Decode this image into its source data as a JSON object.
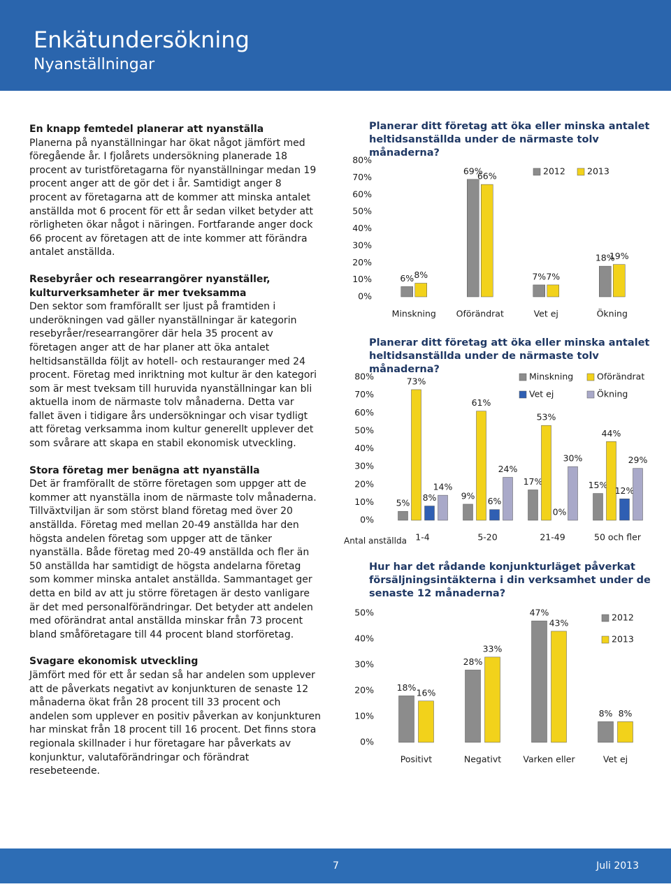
{
  "header": {
    "title": "Enkätundersökning",
    "subtitle": "Nyanställningar"
  },
  "sections": [
    {
      "heading": "En knapp femtedel planerar att nyanställa",
      "body": "Planerna på nyanställningar har ökat något jämfört med föregående år. I fjolårets undersökning planerade 18 procent av turistföretagarna för nyanställningar medan 19 procent anger att de gör det i år. Samtidigt anger 8 procent av företagarna att de kommer att minska antalet anställda mot 6 procent för ett år sedan vilket betyder att rörligheten ökar något i näringen. Fortfarande anger dock 66 procent av företagen att de inte kommer att förändra antalet anställda."
    },
    {
      "heading": "Resebyråer och researrangörer nyanställer, kulturverksamheter är mer tveksamma",
      "body": "Den sektor som framförallt ser ljust på framtiden i underökningen vad gäller nyanställningar är kategorin resebyråer/researrangörer där hela 35 procent av företagen anger att de har planer att öka antalet heltidsanställda följt av hotell- och restauranger med 24 procent. Företag med inriktning mot kultur är den kategori som är mest tveksam till huruvida nyanställningar kan bli aktuella inom de närmaste tolv månaderna. Detta var fallet även i tidigare års undersökningar och visar tydligt att företag verksamma inom kultur generellt upplever det som svårare att skapa en stabil ekonomisk utveckling."
    },
    {
      "heading": "Stora företag mer benägna att nyanställa",
      "body": "Det är framförallt de större företagen som uppger att de kommer att nyanställa inom de närmaste tolv månaderna. Tillväxtviljan är som störst bland företag med över 20 anställda. Företag med mellan 20-49 anställda har den högsta andelen företag som uppger att de tänker nyanställa. Både företag med 20-49 anställda och fler än 50 anställda har samtidigt de högsta andelarna företag som kommer minska antalet anställda. Sammantaget ger detta en bild av att ju större företagen är desto vanligare är det med personalförändringar. Det betyder att andelen med oförändrat antal anställda minskar från 73 procent bland småföretagare till 44 procent bland storföretag."
    },
    {
      "heading": "Svagare ekonomisk utveckling",
      "body": "Jämfört med för ett år sedan så har andelen som upplever att de påverkats negativt av konjunkturen de senaste 12 månaderna ökat från 28 procent till 33 procent och andelen som upplever en positiv påverkan av konjunkturen har minskat från 18 procent till 16 procent. Det finns stora regionala skillnader i hur företagare har påverkats av konjunktur, valutaförändringar och förändrat resebeteende."
    }
  ],
  "chart_data": [
    {
      "type": "bar",
      "title": "Planerar ditt företag att öka eller minska antalet heltidsanställda under de närmaste tolv månaderna?",
      "categories": [
        "Minskning",
        "Oförändrat",
        "Vet ej",
        "Ökning"
      ],
      "series": [
        {
          "name": "2012",
          "color": "#8c8c8c",
          "values": [
            6,
            69,
            7,
            18
          ],
          "value_labels": [
            "6%",
            "69%",
            "7%",
            "18%"
          ]
        },
        {
          "name": "2013",
          "color": "#f2d21b",
          "values": [
            8,
            66,
            7,
            19
          ],
          "value_labels": [
            "8%",
            "66%",
            "7%",
            "19%"
          ]
        }
      ],
      "ylim": [
        0,
        80
      ],
      "yticks": [
        {
          "value": 0,
          "label": "0%"
        },
        {
          "value": 10,
          "label": "10%"
        },
        {
          "value": 20,
          "label": "20%"
        },
        {
          "value": 30,
          "label": "30%"
        },
        {
          "value": 40,
          "label": "40%"
        },
        {
          "value": 50,
          "label": "50%"
        },
        {
          "value": 60,
          "label": "60%"
        },
        {
          "value": 70,
          "label": "70%"
        },
        {
          "value": 80,
          "label": "80%"
        }
      ]
    },
    {
      "type": "bar",
      "title": "Planerar ditt företag att öka eller minska antalet heltidsanställda under de närmaste tolv månaderna?",
      "x_label": "Antal  anställda",
      "categories": [
        "1-4",
        "5-20",
        "21-49",
        "50 och fler"
      ],
      "series": [
        {
          "name": "Minskning",
          "color": "#8c8c8c",
          "values": [
            5,
            9,
            17,
            15
          ],
          "value_labels": [
            "5%",
            "9%",
            "17%",
            "15%"
          ]
        },
        {
          "name": "Oförändrat",
          "color": "#f2d21b",
          "values": [
            73,
            61,
            53,
            44
          ],
          "value_labels": [
            "73%",
            "61%",
            "53%",
            "44%"
          ]
        },
        {
          "name": "Vet ej",
          "color": "#2f5fb3",
          "values": [
            8,
            6,
            0,
            12
          ],
          "value_labels": [
            "8%",
            "6%",
            "0%",
            "12%"
          ]
        },
        {
          "name": "Ökning",
          "color": "#a9a9c9",
          "values": [
            14,
            24,
            30,
            29
          ],
          "value_labels": [
            "14%",
            "24%",
            "30%",
            "29%"
          ]
        }
      ],
      "ylim": [
        0,
        80
      ],
      "yticks": [
        {
          "value": 0,
          "label": "0%"
        },
        {
          "value": 10,
          "label": "10%"
        },
        {
          "value": 20,
          "label": "20%"
        },
        {
          "value": 30,
          "label": "30%"
        },
        {
          "value": 40,
          "label": "40%"
        },
        {
          "value": 50,
          "label": "50%"
        },
        {
          "value": 60,
          "label": "60%"
        },
        {
          "value": 70,
          "label": "70%"
        },
        {
          "value": 80,
          "label": "80%"
        }
      ]
    },
    {
      "type": "bar",
      "title": "Hur har det rådande konjunkturläget påverkat försäljningsintäkterna i  din verksamhet under de senaste 12 månaderna?",
      "categories": [
        "Positivt",
        "Negativt",
        "Varken eller",
        "Vet ej"
      ],
      "series": [
        {
          "name": "2012",
          "color": "#8c8c8c",
          "values": [
            18,
            28,
            47,
            8
          ],
          "value_labels": [
            "18%",
            "28%",
            "47%",
            "8%"
          ]
        },
        {
          "name": "2013",
          "color": "#f2d21b",
          "values": [
            16,
            33,
            43,
            8
          ],
          "value_labels": [
            "16%",
            "33%",
            "43%",
            "8%"
          ]
        }
      ],
      "ylim": [
        0,
        50
      ],
      "yticks": [
        {
          "value": 0,
          "label": "0%"
        },
        {
          "value": 10,
          "label": "10%"
        },
        {
          "value": 20,
          "label": "20%"
        },
        {
          "value": 30,
          "label": "30%"
        },
        {
          "value": 40,
          "label": "40%"
        },
        {
          "value": 50,
          "label": "50%"
        }
      ]
    }
  ],
  "footer": {
    "page": "7",
    "date": "Juli 2013"
  }
}
